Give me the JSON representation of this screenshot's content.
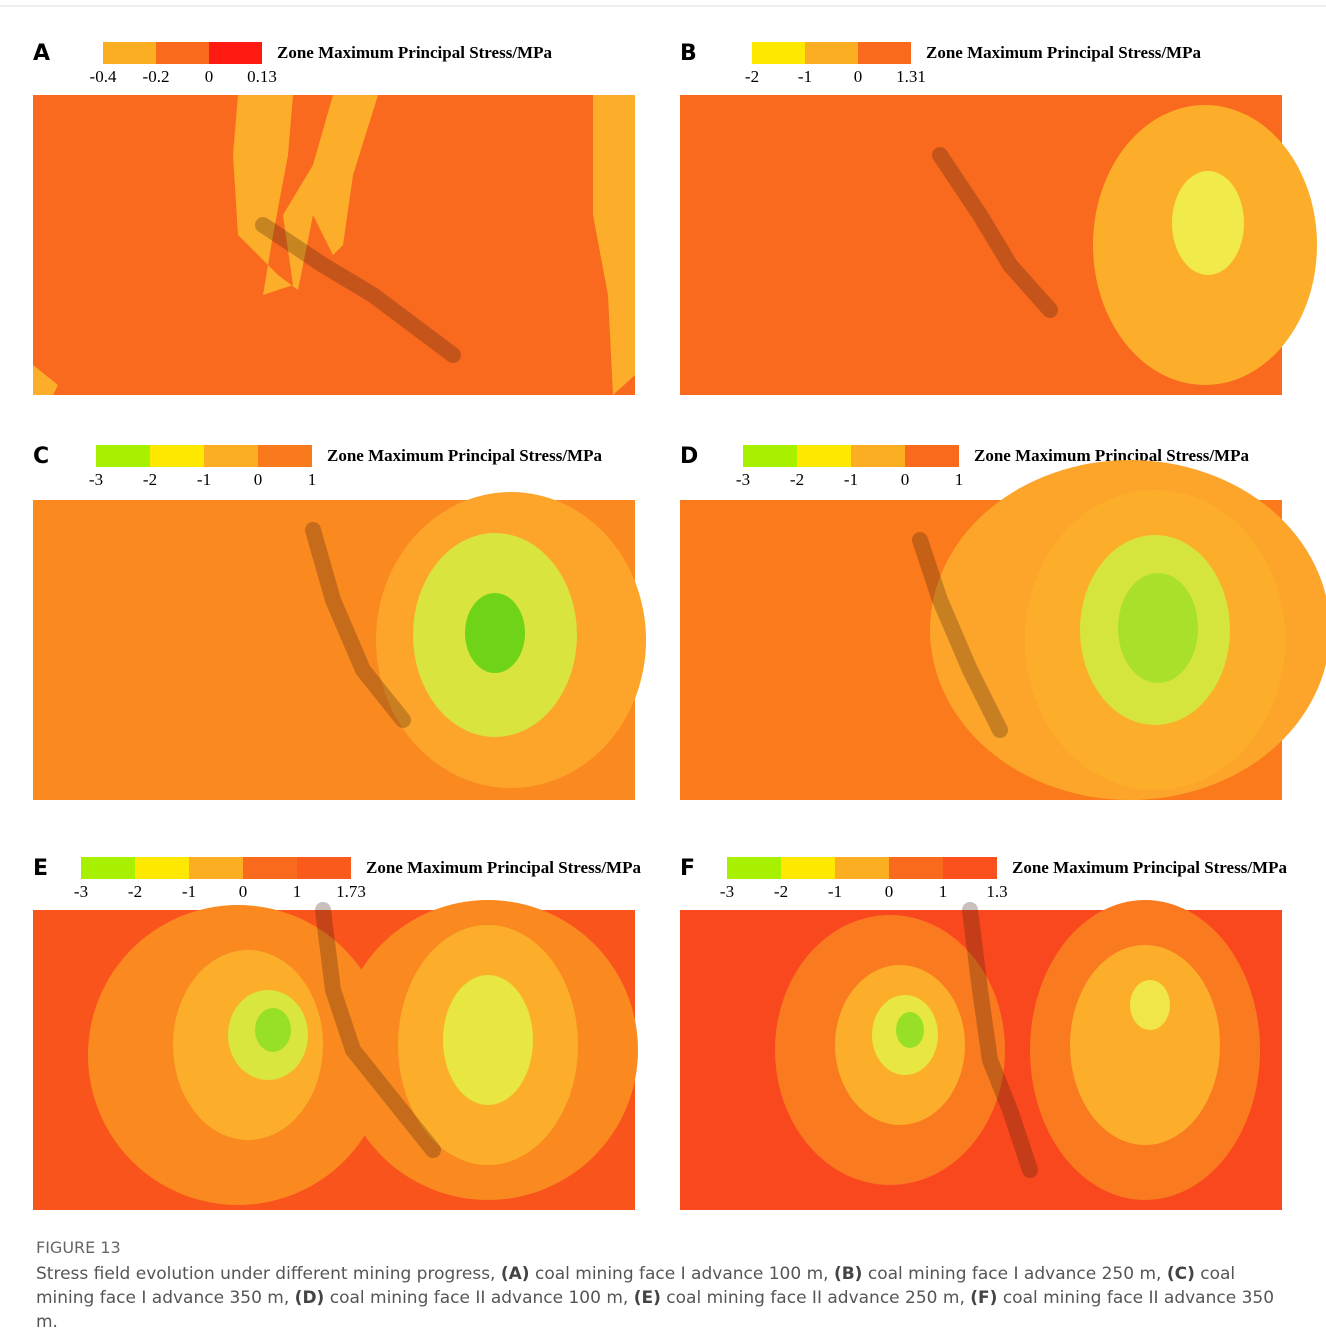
{
  "panels": [
    {
      "label": "A",
      "legend_title": "Zone Maximum Principal Stress/MPa",
      "legend_ticks": [
        "-0.4",
        "-0.2",
        "0",
        "0.13"
      ],
      "legend_colors": [
        "#fcae22",
        "#f96a1c",
        "#ff1a12"
      ]
    },
    {
      "label": "B",
      "legend_title": "Zone Maximum Principal Stress/MPa",
      "legend_ticks": [
        "-2",
        "-1",
        "0",
        "1.31"
      ],
      "legend_colors": [
        "#ffe800",
        "#fcae22",
        "#f96a1c"
      ]
    },
    {
      "label": "C",
      "legend_title": "Zone Maximum Principal Stress/MPa",
      "legend_ticks": [
        "-3",
        "-2",
        "-1",
        "0",
        "1"
      ],
      "legend_colors": [
        "#a6f000",
        "#ffe800",
        "#fcae22",
        "#f97a1c"
      ]
    },
    {
      "label": "D",
      "legend_title": "Zone Maximum Principal Stress/MPa",
      "legend_ticks": [
        "-3",
        "-2",
        "-1",
        "0",
        "1"
      ],
      "legend_colors": [
        "#a6f000",
        "#ffe800",
        "#fcae22",
        "#f96a1c"
      ]
    },
    {
      "label": "E",
      "legend_title": "Zone Maximum Principal Stress/MPa",
      "legend_ticks": [
        "-3",
        "-2",
        "-1",
        "0",
        "1",
        "1.73"
      ],
      "legend_colors": [
        "#a6f000",
        "#ffe800",
        "#fcae22",
        "#f96a1c",
        "#fa5a1c"
      ]
    },
    {
      "label": "F",
      "legend_title": "Zone Maximum Principal Stress/MPa",
      "legend_ticks": [
        "-3",
        "-2",
        "-1",
        "0",
        "1",
        "1.3"
      ],
      "legend_colors": [
        "#a6f000",
        "#ffe800",
        "#fcae22",
        "#f96a1c",
        "#fa501c"
      ]
    }
  ],
  "caption": {
    "label": "FIGURE 13",
    "parts": [
      {
        "text": "Stress field evolution under different mining progress, ",
        "bold": false
      },
      {
        "text": "(A)",
        "bold": true
      },
      {
        "text": " coal mining face I advance 100 m, ",
        "bold": false
      },
      {
        "text": "(B)",
        "bold": true
      },
      {
        "text": " coal mining face I advance 250 m, ",
        "bold": false
      },
      {
        "text": "(C)",
        "bold": true
      },
      {
        "text": " coal mining face I advance 350 m, ",
        "bold": false
      },
      {
        "text": "(D)",
        "bold": true
      },
      {
        "text": " coal mining face II advance 100 m, ",
        "bold": false
      },
      {
        "text": "(E)",
        "bold": true
      },
      {
        "text": " coal mining face II advance 250 m, ",
        "bold": false
      },
      {
        "text": "(F)",
        "bold": true
      },
      {
        "text": " coal mining face II advance 350 m.",
        "bold": false
      }
    ]
  }
}
